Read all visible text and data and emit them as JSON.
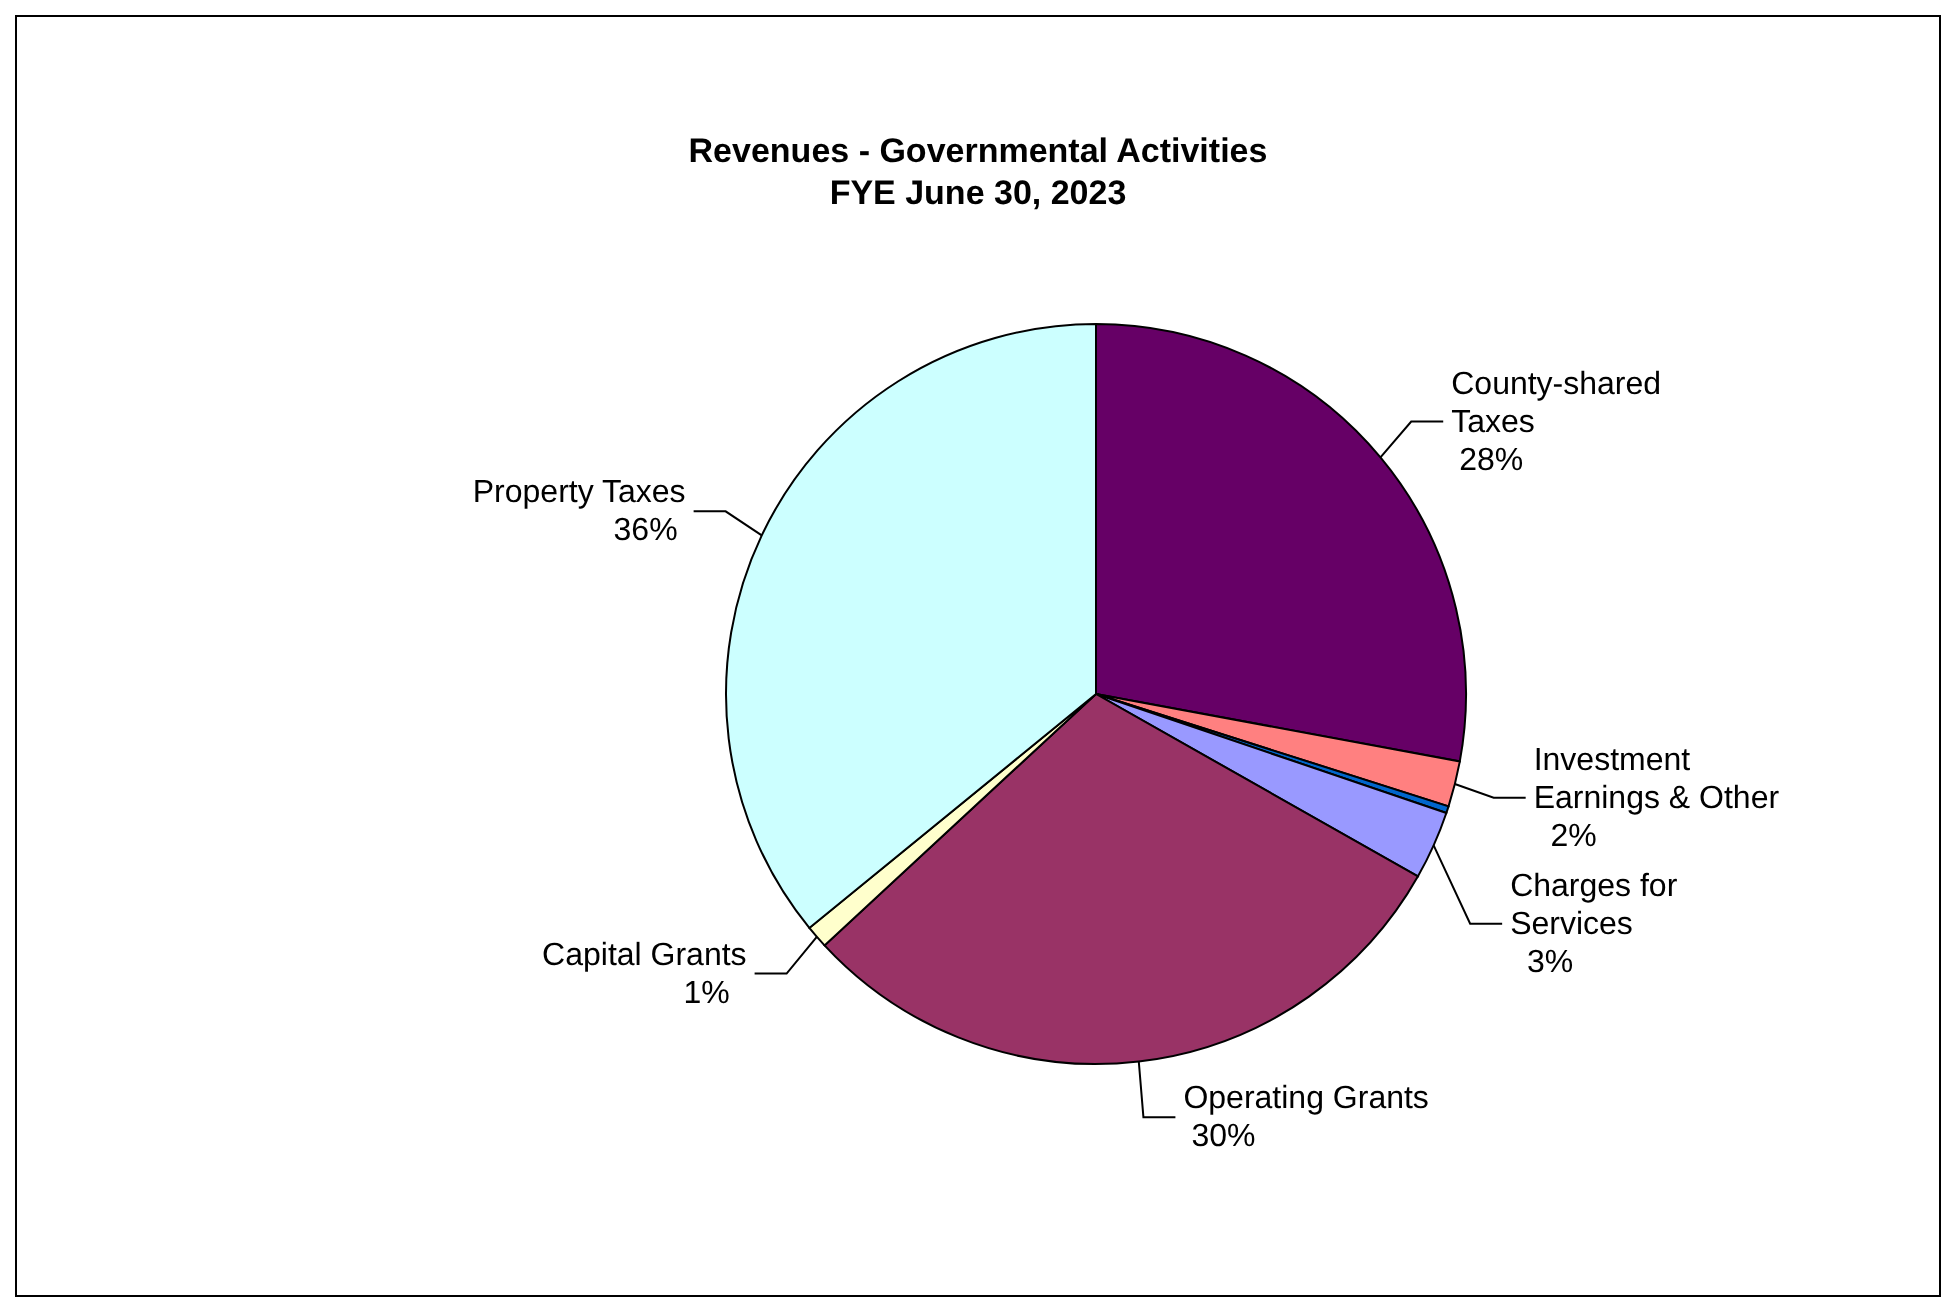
{
  "chart_data": {
    "type": "pie",
    "title": "Revenues - Governmental Activities",
    "subtitle": "FYE June 30, 2023",
    "categories": [
      "County-shared Taxes",
      "Investment Earnings & Other",
      null,
      "Charges for Services",
      "Operating Grants",
      "Capital Grants",
      "Property Taxes"
    ],
    "values": [
      28,
      2,
      0.3,
      3,
      30,
      1,
      36
    ],
    "value_labels": [
      "28%",
      "2%",
      null,
      "3%",
      "30%",
      "1%",
      "36%"
    ],
    "colors": [
      "#660066",
      "#ff8080",
      "#0066cc",
      "#9999ff",
      "#993366",
      "#ffffcc",
      "#ccffff"
    ]
  }
}
